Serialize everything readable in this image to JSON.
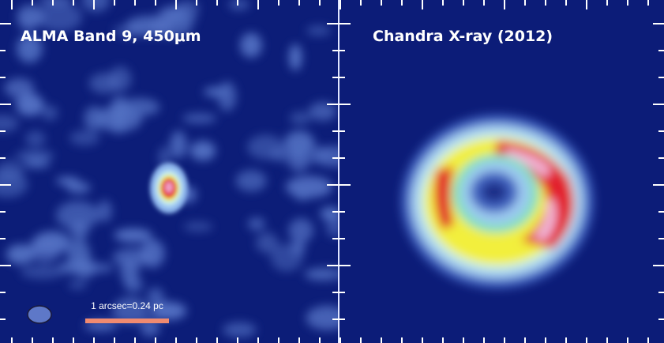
{
  "panels": [
    {
      "title": "ALMA Band 9, 450μm",
      "scale_bar_label": "1 arcsec=0.24 pc"
    },
    {
      "title": "Chandra X-ray (2012)"
    }
  ]
}
